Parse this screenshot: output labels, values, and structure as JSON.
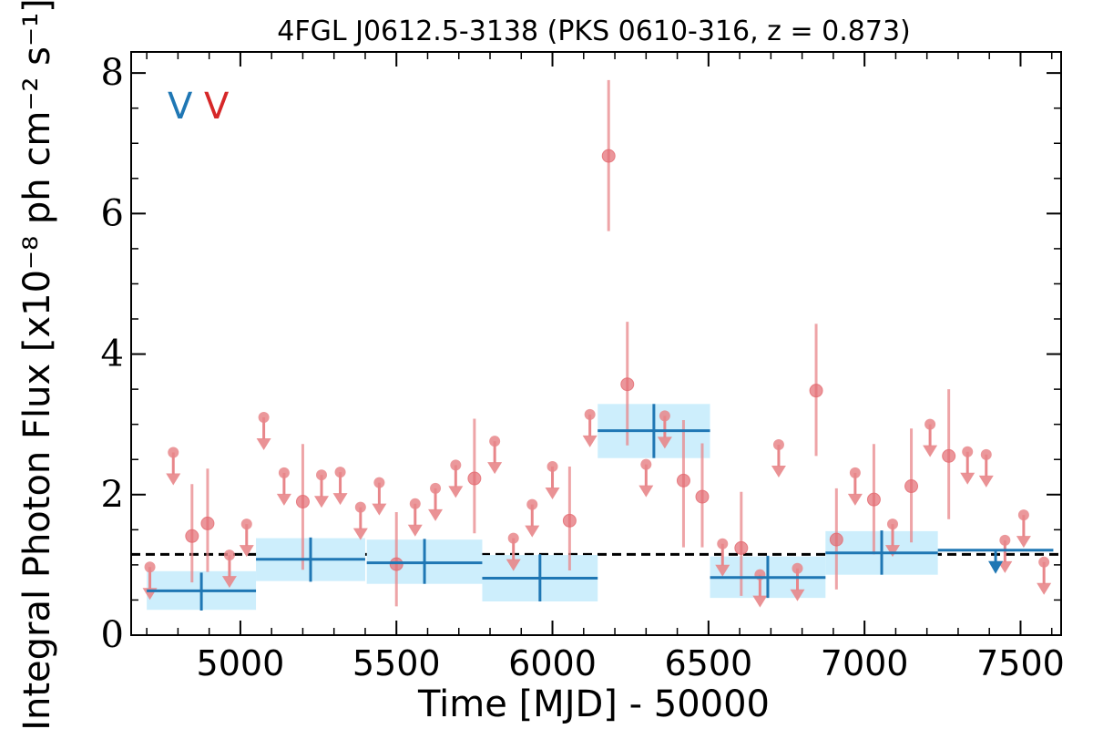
{
  "chart_data": {
    "type": "scatter",
    "title": "4FGL J0612.5-3138 (PKS 0610-316, z = 0.873)",
    "xlabel": "Time [MJD] - 50000",
    "ylabel": "Integral Photon Flux [x10⁻⁸ ph cm⁻² s⁻¹]",
    "xlim": [
      4650,
      7630
    ],
    "ylim": [
      0,
      8.3
    ],
    "x_ticks": [
      "5000",
      "5500",
      "6000",
      "6500",
      "7000",
      "7500"
    ],
    "y_ticks": [
      "0",
      "2",
      "4",
      "6",
      "8"
    ],
    "legend": [
      {
        "label": "V",
        "color": "#1f77b4"
      },
      {
        "label": "V",
        "color": "#d62728"
      }
    ],
    "reference_line": {
      "y": 1.15,
      "style": "dashed"
    },
    "colors": {
      "long_bins": "#1f77b4",
      "long_bins_band": "#cdeefc",
      "short_bins": "#e8868a"
    },
    "series": [
      {
        "name": "",
        "bin_type": "long",
        "points": [
          {
            "x": 4875,
            "xerr": 175,
            "y": 0.63,
            "ylo": 0.36,
            "yhi": 0.91,
            "errbar": [
              0.35,
              0.89
            ],
            "upper_limit": false
          },
          {
            "x": 5225,
            "xerr": 175,
            "y": 1.08,
            "ylo": 0.77,
            "yhi": 1.38,
            "errbar": [
              0.76,
              1.39
            ],
            "upper_limit": false
          },
          {
            "x": 5590,
            "xerr": 185,
            "y": 1.03,
            "ylo": 0.73,
            "yhi": 1.36,
            "errbar": [
              0.73,
              1.37
            ],
            "upper_limit": false
          },
          {
            "x": 5960,
            "xerr": 185,
            "y": 0.81,
            "ylo": 0.48,
            "yhi": 1.14,
            "errbar": [
              0.48,
              1.15
            ],
            "upper_limit": false
          },
          {
            "x": 6325,
            "xerr": 180,
            "y": 2.91,
            "ylo": 2.52,
            "yhi": 3.29,
            "errbar": [
              2.52,
              3.29
            ],
            "upper_limit": false
          },
          {
            "x": 6690,
            "xerr": 185,
            "y": 0.82,
            "ylo": 0.53,
            "yhi": 1.12,
            "errbar": [
              0.53,
              1.13
            ],
            "upper_limit": false
          },
          {
            "x": 7055,
            "xerr": 180,
            "y": 1.17,
            "ylo": 0.86,
            "yhi": 1.48,
            "errbar": [
              0.86,
              1.49
            ],
            "upper_limit": false
          },
          {
            "x": 7420,
            "xerr": 185,
            "y": 1.21,
            "upper_limit": true
          }
        ]
      },
      {
        "name": "",
        "bin_type": "short",
        "points": [
          {
            "x": 4710,
            "y": 0.97,
            "upper_limit": true
          },
          {
            "x": 4785,
            "y": 2.6,
            "upper_limit": true
          },
          {
            "x": 4845,
            "y": 1.41,
            "errbar": [
              0.75,
              2.15
            ],
            "upper_limit": false
          },
          {
            "x": 4895,
            "y": 1.59,
            "errbar": [
              0.9,
              2.37
            ],
            "upper_limit": false
          },
          {
            "x": 4965,
            "y": 1.14,
            "upper_limit": true
          },
          {
            "x": 5020,
            "y": 1.58,
            "upper_limit": true
          },
          {
            "x": 5075,
            "y": 3.1,
            "upper_limit": true
          },
          {
            "x": 5140,
            "y": 2.31,
            "upper_limit": true
          },
          {
            "x": 5200,
            "y": 1.9,
            "errbar": [
              0.93,
              2.72
            ],
            "upper_limit": false
          },
          {
            "x": 5260,
            "y": 2.28,
            "upper_limit": true
          },
          {
            "x": 5320,
            "y": 2.32,
            "upper_limit": true
          },
          {
            "x": 5385,
            "y": 1.82,
            "upper_limit": true
          },
          {
            "x": 5445,
            "y": 2.17,
            "upper_limit": true
          },
          {
            "x": 5500,
            "y": 1.01,
            "errbar": [
              0.41,
              1.75
            ],
            "upper_limit": false
          },
          {
            "x": 5560,
            "y": 1.87,
            "upper_limit": true
          },
          {
            "x": 5625,
            "y": 2.09,
            "upper_limit": true
          },
          {
            "x": 5690,
            "y": 2.42,
            "upper_limit": true
          },
          {
            "x": 5750,
            "y": 2.23,
            "errbar": [
              1.45,
              3.08
            ],
            "upper_limit": false
          },
          {
            "x": 5815,
            "y": 2.76,
            "upper_limit": true
          },
          {
            "x": 5875,
            "y": 1.38,
            "upper_limit": true
          },
          {
            "x": 5935,
            "y": 1.86,
            "upper_limit": true
          },
          {
            "x": 6000,
            "y": 2.4,
            "upper_limit": true
          },
          {
            "x": 6055,
            "y": 1.63,
            "errbar": [
              0.92,
              2.4
            ],
            "upper_limit": false
          },
          {
            "x": 6120,
            "y": 3.14,
            "upper_limit": true
          },
          {
            "x": 6180,
            "y": 6.82,
            "errbar": [
              5.75,
              7.9
            ],
            "upper_limit": false
          },
          {
            "x": 6240,
            "y": 3.57,
            "errbar": [
              2.7,
              4.46
            ],
            "upper_limit": false
          },
          {
            "x": 6300,
            "y": 2.43,
            "upper_limit": true
          },
          {
            "x": 6360,
            "y": 3.12,
            "upper_limit": true
          },
          {
            "x": 6420,
            "y": 2.2,
            "errbar": [
              1.25,
              3.06
            ],
            "upper_limit": false
          },
          {
            "x": 6480,
            "y": 1.97,
            "errbar": [
              1.25,
              2.73
            ],
            "upper_limit": false
          },
          {
            "x": 6545,
            "y": 1.3,
            "upper_limit": true
          },
          {
            "x": 6605,
            "y": 1.24,
            "errbar": [
              0.56,
              2.04
            ],
            "upper_limit": false
          },
          {
            "x": 6665,
            "y": 0.86,
            "upper_limit": true
          },
          {
            "x": 6725,
            "y": 2.71,
            "upper_limit": true
          },
          {
            "x": 6785,
            "y": 0.95,
            "upper_limit": true
          },
          {
            "x": 6845,
            "y": 3.48,
            "errbar": [
              2.55,
              4.43
            ],
            "upper_limit": false
          },
          {
            "x": 6910,
            "y": 1.36,
            "errbar": [
              0.65,
              2.09
            ],
            "upper_limit": false
          },
          {
            "x": 6970,
            "y": 2.31,
            "upper_limit": true
          },
          {
            "x": 7030,
            "y": 1.93,
            "errbar": [
              1.15,
              2.72
            ],
            "upper_limit": false
          },
          {
            "x": 7090,
            "y": 1.58,
            "upper_limit": true
          },
          {
            "x": 7150,
            "y": 2.12,
            "errbar": [
              1.32,
              2.94
            ],
            "upper_limit": false
          },
          {
            "x": 7210,
            "y": 3.0,
            "upper_limit": true
          },
          {
            "x": 7270,
            "y": 2.55,
            "errbar": [
              1.65,
              3.5
            ],
            "upper_limit": false
          },
          {
            "x": 7330,
            "y": 2.61,
            "upper_limit": true
          },
          {
            "x": 7390,
            "y": 2.57,
            "upper_limit": true
          },
          {
            "x": 7450,
            "y": 1.35,
            "upper_limit": true
          },
          {
            "x": 7510,
            "y": 1.71,
            "upper_limit": true
          },
          {
            "x": 7575,
            "y": 1.04,
            "upper_limit": true
          }
        ]
      }
    ]
  }
}
